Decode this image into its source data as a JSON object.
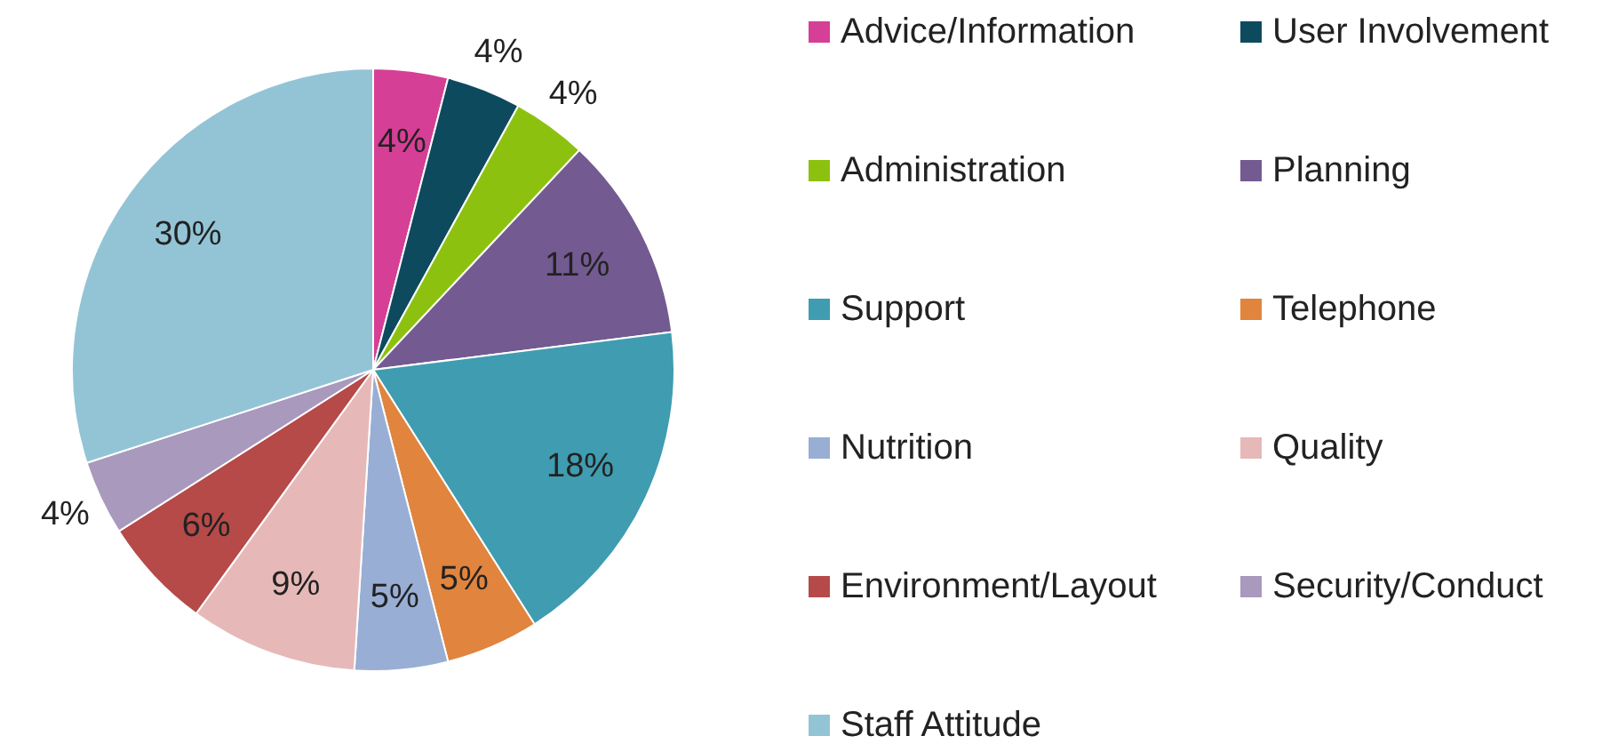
{
  "chart_data": {
    "type": "pie",
    "categories": [
      "Advice/Information",
      "User Involvement",
      "Administration",
      "Planning",
      "Support",
      "Telephone",
      "Nutrition",
      "Quality",
      "Environment/Layout",
      "Security/Conduct",
      "Staff Attitude"
    ],
    "values": [
      4,
      4,
      4,
      11,
      18,
      5,
      5,
      9,
      6,
      4,
      30
    ],
    "value_labels": [
      "4%",
      "4%",
      "4%",
      "11%",
      "18%",
      "5%",
      "5%",
      "9%",
      "6%",
      "4%",
      "30%"
    ],
    "colors": [
      "#d63f96",
      "#0e4a5e",
      "#8cc20f",
      "#735a91",
      "#409cb0",
      "#e0843e",
      "#98aed4",
      "#e6b9b8",
      "#b54a48",
      "#a899bd",
      "#93c4d6"
    ],
    "legend": "right"
  }
}
